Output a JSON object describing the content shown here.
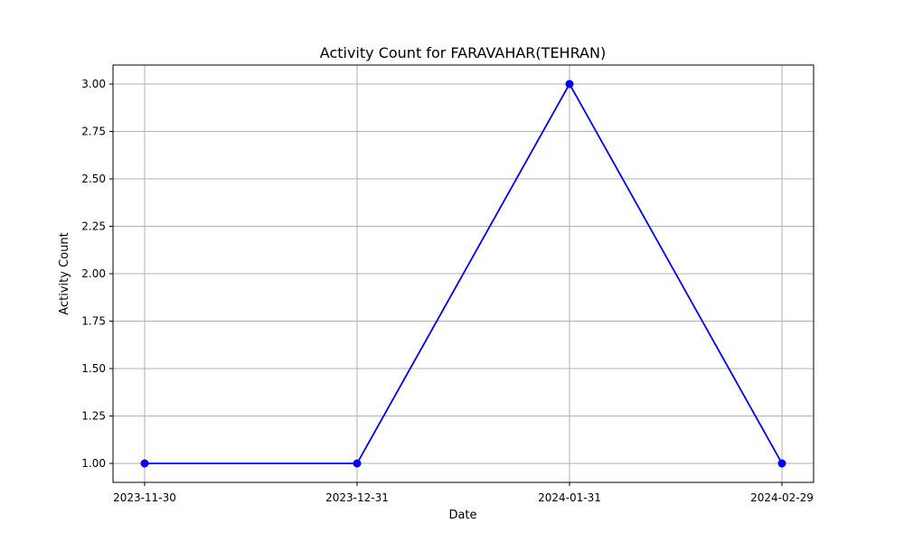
{
  "chart_data": {
    "type": "line",
    "title": "Activity Count for FARAVAHAR(TEHRAN)",
    "xlabel": "Date",
    "ylabel": "Activity Count",
    "x": [
      "2023-11-30",
      "2023-12-31",
      "2024-01-31",
      "2024-02-29"
    ],
    "series": [
      {
        "values": [
          1,
          1,
          3,
          1
        ],
        "color": "#0000ff",
        "marker": "circle"
      }
    ],
    "ylim": [
      0.9,
      3.1
    ],
    "yticks": [
      1.0,
      1.25,
      1.5,
      1.75,
      2.0,
      2.25,
      2.5,
      2.75,
      3.0
    ],
    "ytick_labels": [
      "1.00",
      "1.25",
      "1.50",
      "1.75",
      "2.00",
      "2.25",
      "2.50",
      "2.75",
      "3.00"
    ],
    "xtick_labels": [
      "2023-11-30",
      "2023-12-31",
      "2024-01-31",
      "2024-02-29"
    ],
    "grid": true,
    "grid_color": "#b0b0b0",
    "axis_color": "#000000"
  }
}
